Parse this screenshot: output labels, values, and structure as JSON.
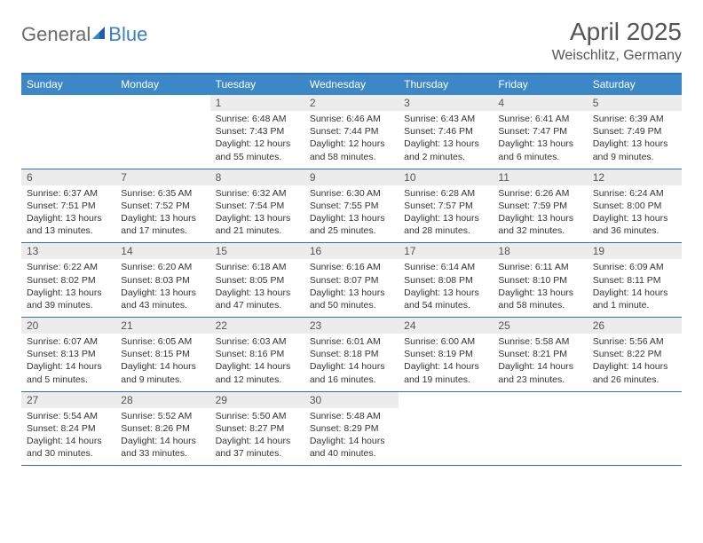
{
  "brand": {
    "text1": "General",
    "text2": "Blue"
  },
  "title": "April 2025",
  "location": "Weischlitz, Germany",
  "colors": {
    "header_bar": "#3b87c8",
    "border": "#2e6fb5",
    "daynum_bg": "#ececec",
    "text_dark": "#333333",
    "text_mid": "#555555",
    "logo_gray": "#6b6b6b",
    "logo_blue": "#3b7fc4",
    "background": "#ffffff"
  },
  "daysOfWeek": [
    "Sunday",
    "Monday",
    "Tuesday",
    "Wednesday",
    "Thursday",
    "Friday",
    "Saturday"
  ],
  "weeks": [
    [
      {
        "blank": true
      },
      {
        "blank": true
      },
      {
        "num": "1",
        "sunrise": "6:48 AM",
        "sunset": "7:43 PM",
        "daylight": "12 hours and 55 minutes."
      },
      {
        "num": "2",
        "sunrise": "6:46 AM",
        "sunset": "7:44 PM",
        "daylight": "12 hours and 58 minutes."
      },
      {
        "num": "3",
        "sunrise": "6:43 AM",
        "sunset": "7:46 PM",
        "daylight": "13 hours and 2 minutes."
      },
      {
        "num": "4",
        "sunrise": "6:41 AM",
        "sunset": "7:47 PM",
        "daylight": "13 hours and 6 minutes."
      },
      {
        "num": "5",
        "sunrise": "6:39 AM",
        "sunset": "7:49 PM",
        "daylight": "13 hours and 9 minutes."
      }
    ],
    [
      {
        "num": "6",
        "sunrise": "6:37 AM",
        "sunset": "7:51 PM",
        "daylight": "13 hours and 13 minutes."
      },
      {
        "num": "7",
        "sunrise": "6:35 AM",
        "sunset": "7:52 PM",
        "daylight": "13 hours and 17 minutes."
      },
      {
        "num": "8",
        "sunrise": "6:32 AM",
        "sunset": "7:54 PM",
        "daylight": "13 hours and 21 minutes."
      },
      {
        "num": "9",
        "sunrise": "6:30 AM",
        "sunset": "7:55 PM",
        "daylight": "13 hours and 25 minutes."
      },
      {
        "num": "10",
        "sunrise": "6:28 AM",
        "sunset": "7:57 PM",
        "daylight": "13 hours and 28 minutes."
      },
      {
        "num": "11",
        "sunrise": "6:26 AM",
        "sunset": "7:59 PM",
        "daylight": "13 hours and 32 minutes."
      },
      {
        "num": "12",
        "sunrise": "6:24 AM",
        "sunset": "8:00 PM",
        "daylight": "13 hours and 36 minutes."
      }
    ],
    [
      {
        "num": "13",
        "sunrise": "6:22 AM",
        "sunset": "8:02 PM",
        "daylight": "13 hours and 39 minutes."
      },
      {
        "num": "14",
        "sunrise": "6:20 AM",
        "sunset": "8:03 PM",
        "daylight": "13 hours and 43 minutes."
      },
      {
        "num": "15",
        "sunrise": "6:18 AM",
        "sunset": "8:05 PM",
        "daylight": "13 hours and 47 minutes."
      },
      {
        "num": "16",
        "sunrise": "6:16 AM",
        "sunset": "8:07 PM",
        "daylight": "13 hours and 50 minutes."
      },
      {
        "num": "17",
        "sunrise": "6:14 AM",
        "sunset": "8:08 PM",
        "daylight": "13 hours and 54 minutes."
      },
      {
        "num": "18",
        "sunrise": "6:11 AM",
        "sunset": "8:10 PM",
        "daylight": "13 hours and 58 minutes."
      },
      {
        "num": "19",
        "sunrise": "6:09 AM",
        "sunset": "8:11 PM",
        "daylight": "14 hours and 1 minute."
      }
    ],
    [
      {
        "num": "20",
        "sunrise": "6:07 AM",
        "sunset": "8:13 PM",
        "daylight": "14 hours and 5 minutes."
      },
      {
        "num": "21",
        "sunrise": "6:05 AM",
        "sunset": "8:15 PM",
        "daylight": "14 hours and 9 minutes."
      },
      {
        "num": "22",
        "sunrise": "6:03 AM",
        "sunset": "8:16 PM",
        "daylight": "14 hours and 12 minutes."
      },
      {
        "num": "23",
        "sunrise": "6:01 AM",
        "sunset": "8:18 PM",
        "daylight": "14 hours and 16 minutes."
      },
      {
        "num": "24",
        "sunrise": "6:00 AM",
        "sunset": "8:19 PM",
        "daylight": "14 hours and 19 minutes."
      },
      {
        "num": "25",
        "sunrise": "5:58 AM",
        "sunset": "8:21 PM",
        "daylight": "14 hours and 23 minutes."
      },
      {
        "num": "26",
        "sunrise": "5:56 AM",
        "sunset": "8:22 PM",
        "daylight": "14 hours and 26 minutes."
      }
    ],
    [
      {
        "num": "27",
        "sunrise": "5:54 AM",
        "sunset": "8:24 PM",
        "daylight": "14 hours and 30 minutes."
      },
      {
        "num": "28",
        "sunrise": "5:52 AM",
        "sunset": "8:26 PM",
        "daylight": "14 hours and 33 minutes."
      },
      {
        "num": "29",
        "sunrise": "5:50 AM",
        "sunset": "8:27 PM",
        "daylight": "14 hours and 37 minutes."
      },
      {
        "num": "30",
        "sunrise": "5:48 AM",
        "sunset": "8:29 PM",
        "daylight": "14 hours and 40 minutes."
      },
      {
        "blank": true
      },
      {
        "blank": true
      },
      {
        "blank": true
      }
    ]
  ],
  "labels": {
    "sunrise": "Sunrise:",
    "sunset": "Sunset:",
    "daylight": "Daylight:"
  }
}
